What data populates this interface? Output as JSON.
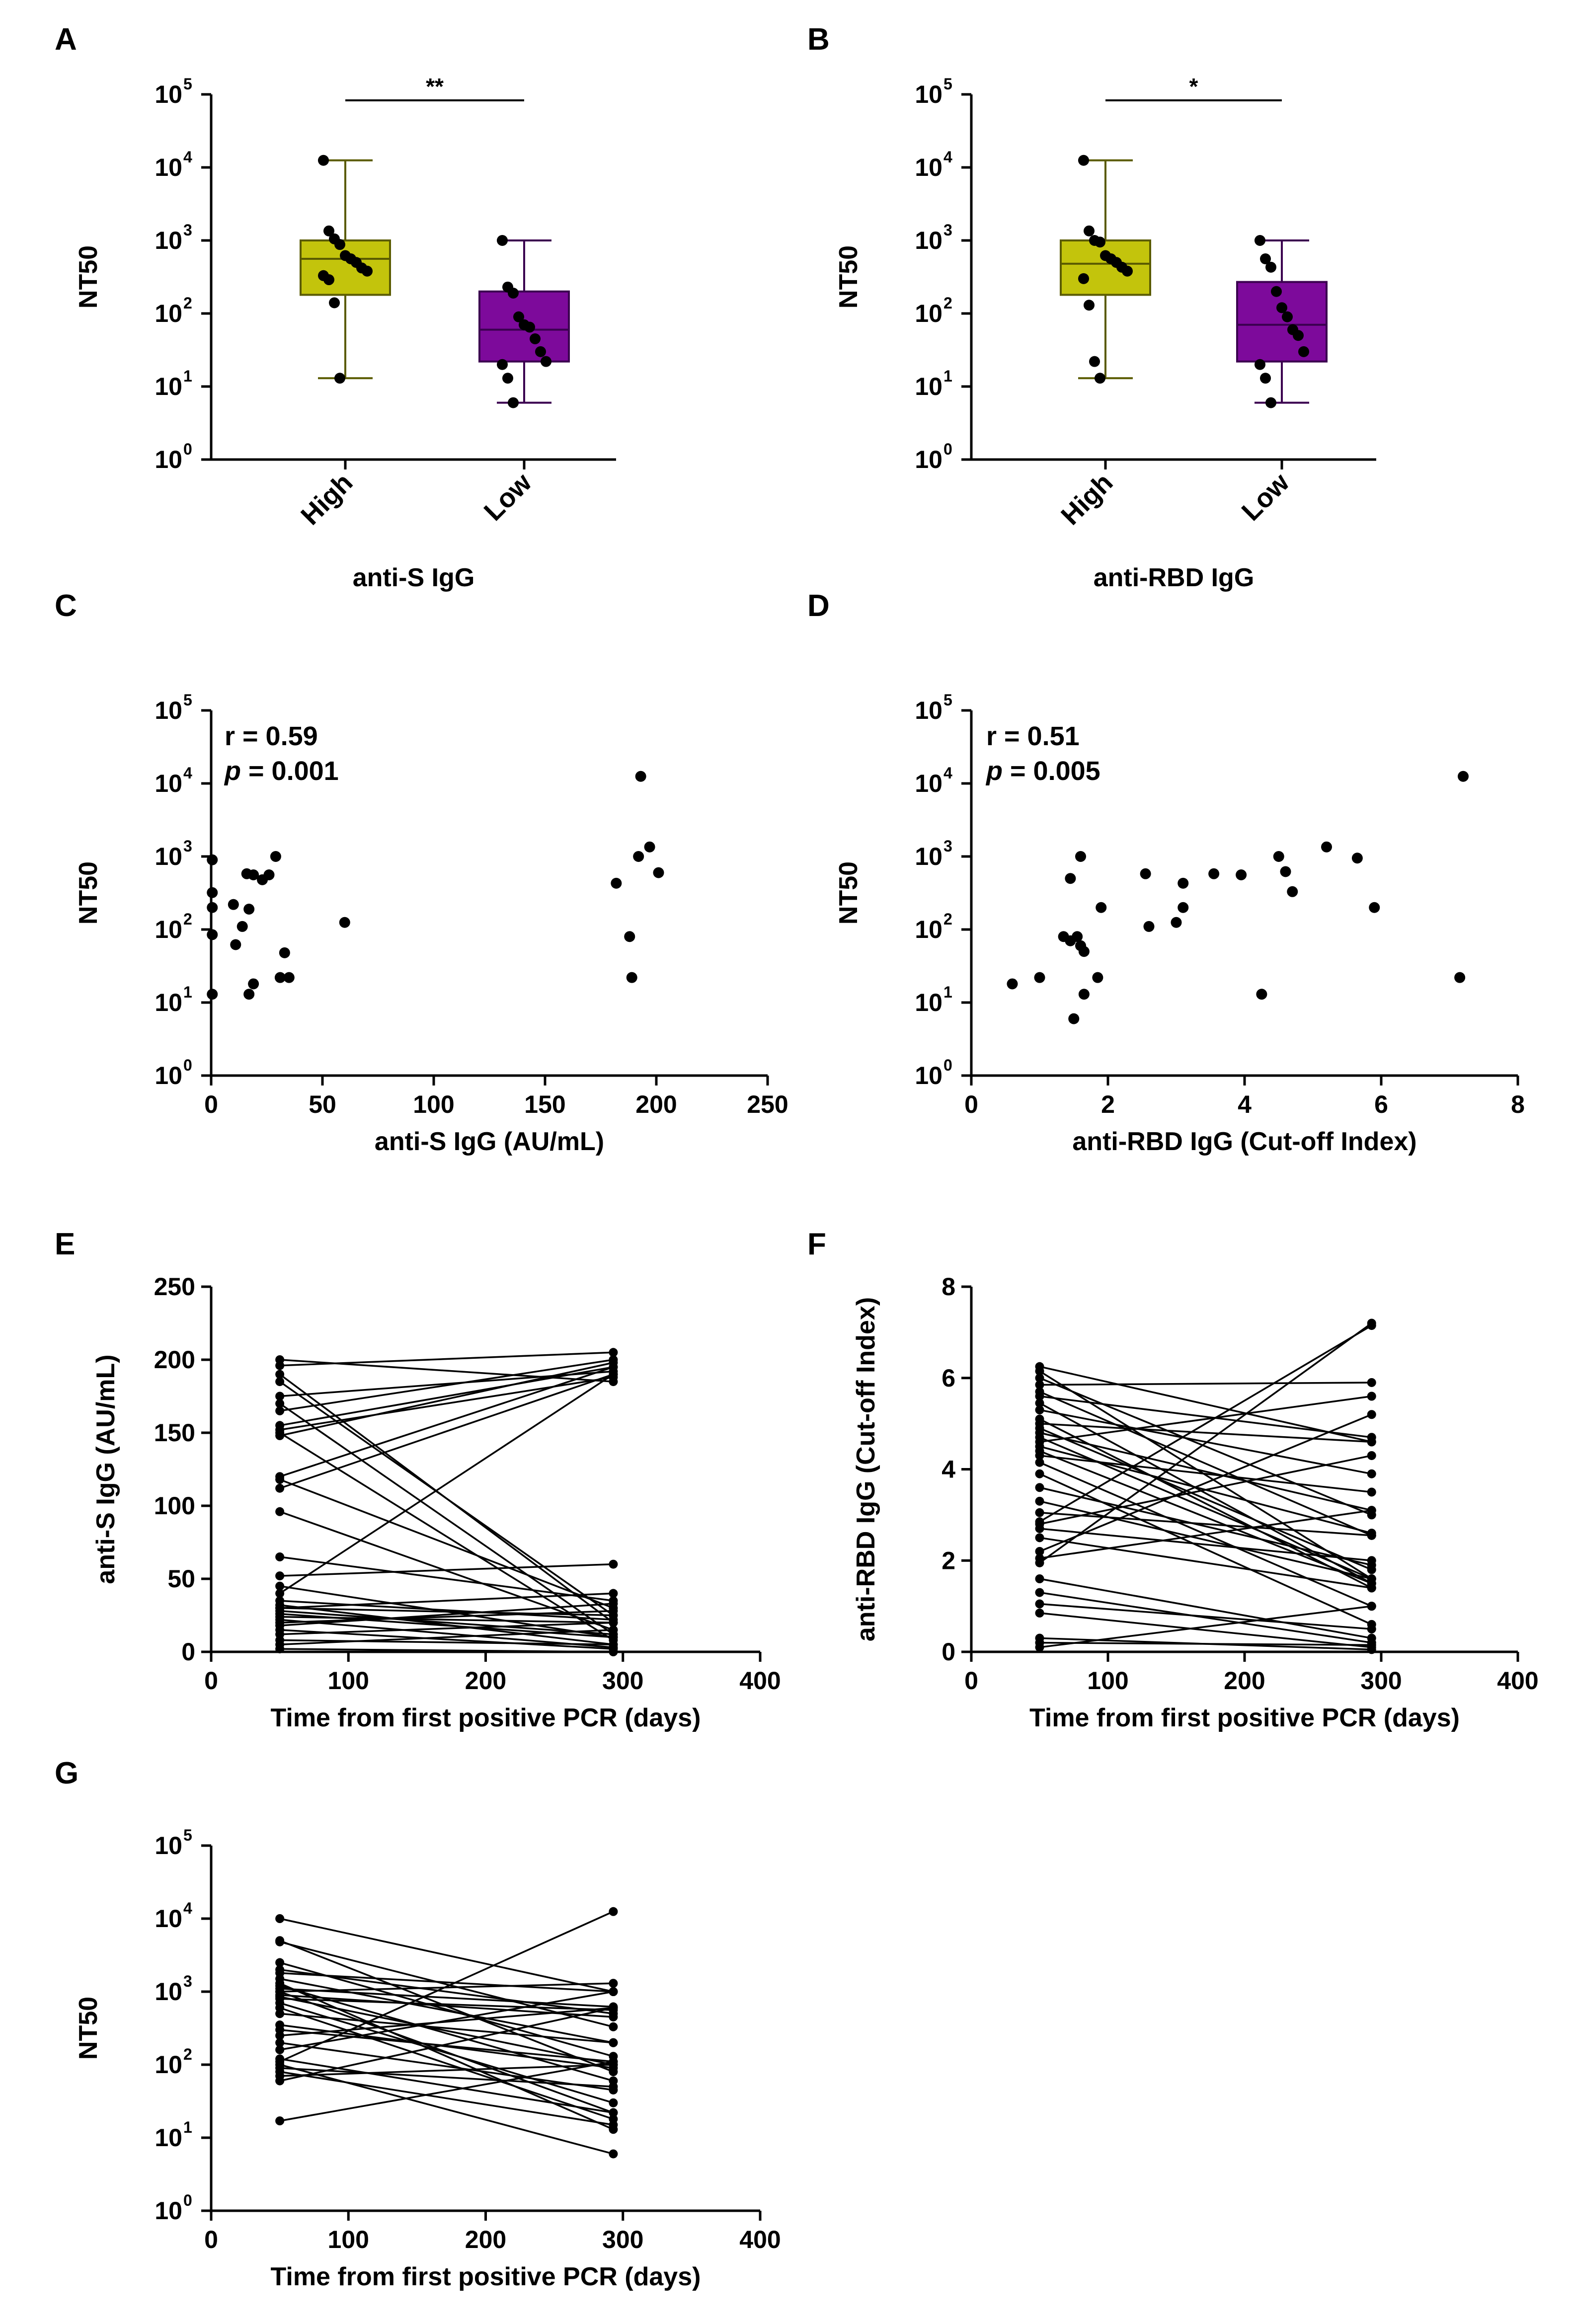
{
  "chart_data": [
    {
      "id": "A",
      "panel_letter": "A",
      "type": "box",
      "ylabel": "NT50",
      "xlabel": "anti-S IgG",
      "yscale": "log",
      "ylim": [
        1,
        100000
      ],
      "ytick_values": [
        1,
        10,
        100,
        1000,
        10000,
        100000
      ],
      "ytick_exponents": [
        "0",
        "1",
        "2",
        "3",
        "4",
        "5"
      ],
      "ytick_base": "10",
      "categories": [
        "High",
        "Low"
      ],
      "boxes": [
        {
          "name": "High",
          "min": 13,
          "q1": 180,
          "median": 560,
          "q3": 1000,
          "max": 12500,
          "color": "#c3c40c",
          "edge_color": "#5a5b00",
          "points": [
            12500,
            1350,
            1050,
            880,
            620,
            560,
            500,
            420,
            380,
            330,
            290,
            140,
            13
          ]
        },
        {
          "name": "Low",
          "min": 6,
          "q1": 22,
          "median": 60,
          "q3": 200,
          "max": 1000,
          "color": "#7d0a9b",
          "edge_color": "#3b0050",
          "points": [
            1000,
            230,
            190,
            90,
            70,
            65,
            45,
            30,
            22,
            20,
            13,
            6
          ]
        }
      ],
      "significance": {
        "label": "**",
        "from": "High",
        "to": "Low",
        "y": 100000
      }
    },
    {
      "id": "B",
      "panel_letter": "B",
      "type": "box",
      "ylabel": "NT50",
      "xlabel": "anti-RBD IgG",
      "yscale": "log",
      "ylim": [
        1,
        100000
      ],
      "ytick_values": [
        1,
        10,
        100,
        1000,
        10000,
        100000
      ],
      "ytick_exponents": [
        "0",
        "1",
        "2",
        "3",
        "4",
        "5"
      ],
      "ytick_base": "10",
      "categories": [
        "High",
        "Low"
      ],
      "boxes": [
        {
          "name": "High",
          "min": 13,
          "q1": 180,
          "median": 480,
          "q3": 1000,
          "max": 12500,
          "color": "#c3c40c",
          "edge_color": "#5a5b00",
          "points": [
            12500,
            1350,
            1000,
            950,
            620,
            560,
            500,
            430,
            380,
            300,
            130,
            22,
            13
          ]
        },
        {
          "name": "Low",
          "min": 6,
          "q1": 22,
          "median": 70,
          "q3": 270,
          "max": 1000,
          "color": "#7d0a9b",
          "edge_color": "#3b0050",
          "points": [
            1000,
            560,
            430,
            200,
            120,
            90,
            60,
            50,
            30,
            20,
            13,
            6
          ]
        }
      ],
      "significance": {
        "label": "*",
        "from": "High",
        "to": "Low",
        "y": 100000
      }
    },
    {
      "id": "C",
      "panel_letter": "C",
      "type": "scatter",
      "ylabel": "NT50",
      "xlabel": "anti-S IgG (AU/mL)",
      "yscale": "log",
      "ylim": [
        1,
        100000
      ],
      "xlim": [
        0,
        250
      ],
      "ytick_values": [
        1,
        10,
        100,
        1000,
        10000,
        100000
      ],
      "ytick_exponents": [
        "0",
        "1",
        "2",
        "3",
        "4",
        "5"
      ],
      "ytick_base": "10",
      "xticks": [
        0,
        50,
        100,
        150,
        200,
        250
      ],
      "annotation": {
        "r_text": "r = 0.59",
        "p_prefix": "p",
        "p_value": " = 0.001"
      },
      "points": [
        [
          0.5,
          900
        ],
        [
          0.5,
          320
        ],
        [
          0.5,
          200
        ],
        [
          0.5,
          85
        ],
        [
          0.5,
          13
        ],
        [
          10,
          220
        ],
        [
          11,
          62
        ],
        [
          14,
          110
        ],
        [
          16,
          580
        ],
        [
          17,
          190
        ],
        [
          17,
          13
        ],
        [
          19,
          560
        ],
        [
          19,
          18
        ],
        [
          23,
          480
        ],
        [
          26,
          560
        ],
        [
          29,
          1000
        ],
        [
          31,
          22
        ],
        [
          33,
          48
        ],
        [
          35,
          22
        ],
        [
          60,
          125
        ],
        [
          182,
          430
        ],
        [
          188,
          80
        ],
        [
          189,
          22
        ],
        [
          192,
          1000
        ],
        [
          193,
          12500
        ],
        [
          197,
          1350
        ],
        [
          201,
          600
        ]
      ]
    },
    {
      "id": "D",
      "panel_letter": "D",
      "type": "scatter",
      "ylabel": "NT50",
      "xlabel": "anti-RBD IgG (Cut-off Index)",
      "yscale": "log",
      "ylim": [
        1,
        100000
      ],
      "xlim": [
        0,
        8
      ],
      "ytick_values": [
        1,
        10,
        100,
        1000,
        10000,
        100000
      ],
      "ytick_exponents": [
        "0",
        "1",
        "2",
        "3",
        "4",
        "5"
      ],
      "ytick_base": "10",
      "xticks": [
        0,
        2,
        4,
        6,
        8
      ],
      "annotation": {
        "r_text": "r = 0.51",
        "p_prefix": "p",
        "p_value": " = 0.005"
      },
      "points": [
        [
          0.6,
          18
        ],
        [
          1.0,
          22
        ],
        [
          1.35,
          80
        ],
        [
          1.45,
          500
        ],
        [
          1.45,
          70
        ],
        [
          1.5,
          6
        ],
        [
          1.55,
          80
        ],
        [
          1.6,
          60
        ],
        [
          1.6,
          1000
        ],
        [
          1.65,
          13
        ],
        [
          1.65,
          50
        ],
        [
          1.85,
          22
        ],
        [
          1.9,
          200
        ],
        [
          2.55,
          580
        ],
        [
          2.6,
          110
        ],
        [
          3.0,
          125
        ],
        [
          3.1,
          430
        ],
        [
          3.1,
          200
        ],
        [
          3.55,
          580
        ],
        [
          3.95,
          560
        ],
        [
          4.25,
          13
        ],
        [
          4.5,
          1000
        ],
        [
          4.6,
          620
        ],
        [
          4.7,
          330
        ],
        [
          5.2,
          1350
        ],
        [
          5.65,
          950
        ],
        [
          5.9,
          200
        ],
        [
          7.15,
          22
        ],
        [
          7.2,
          12500
        ]
      ]
    },
    {
      "id": "E",
      "panel_letter": "E",
      "type": "line",
      "ylabel": "anti-S IgG (AU/mL)",
      "xlabel": "Time from first positive PCR (days)",
      "yscale": "linear",
      "ylim": [
        0,
        250
      ],
      "xlim": [
        0,
        400
      ],
      "yticks": [
        0,
        50,
        100,
        150,
        200,
        250
      ],
      "xticks": [
        0,
        100,
        200,
        300,
        400
      ],
      "x": [
        50,
        293
      ],
      "pairs": [
        [
          200,
          185
        ],
        [
          196,
          205
        ],
        [
          190,
          20
        ],
        [
          185,
          25
        ],
        [
          175,
          192
        ],
        [
          170,
          12
        ],
        [
          165,
          200
        ],
        [
          155,
          195
        ],
        [
          152,
          188
        ],
        [
          150,
          8
        ],
        [
          148,
          198
        ],
        [
          120,
          195
        ],
        [
          118,
          30
        ],
        [
          112,
          190
        ],
        [
          96,
          15
        ],
        [
          65,
          35
        ],
        [
          52,
          60
        ],
        [
          45,
          10
        ],
        [
          40,
          190
        ],
        [
          35,
          22
        ],
        [
          32,
          5
        ],
        [
          30,
          40
        ],
        [
          28,
          12
        ],
        [
          26,
          10
        ],
        [
          22,
          3
        ],
        [
          20,
          28
        ],
        [
          15,
          2
        ],
        [
          12,
          20
        ],
        [
          8,
          5
        ],
        [
          2,
          0
        ],
        [
          5,
          15
        ],
        [
          18,
          33
        ],
        [
          24,
          20
        ],
        [
          30,
          25
        ]
      ]
    },
    {
      "id": "F",
      "panel_letter": "F",
      "type": "line",
      "ylabel": "anti-RBD IgG (Cut-off Index)",
      "xlabel": "Time from first positive PCR (days)",
      "yscale": "linear",
      "ylim": [
        0,
        8
      ],
      "xlim": [
        0,
        400
      ],
      "yticks": [
        0,
        2,
        4,
        6,
        8
      ],
      "xticks": [
        0,
        100,
        200,
        300,
        400
      ],
      "x": [
        50,
        293
      ],
      "pairs": [
        [
          6.25,
          4.6
        ],
        [
          6.15,
          1.6
        ],
        [
          6.0,
          3.0
        ],
        [
          5.85,
          5.9
        ],
        [
          5.7,
          2.55
        ],
        [
          5.6,
          4.7
        ],
        [
          5.45,
          1.5
        ],
        [
          5.3,
          3.9
        ],
        [
          5.1,
          1.4
        ],
        [
          5.0,
          4.6
        ],
        [
          4.9,
          1.8
        ],
        [
          4.8,
          3.1
        ],
        [
          4.7,
          1.6
        ],
        [
          4.6,
          5.6
        ],
        [
          4.5,
          2.6
        ],
        [
          4.4,
          1.5
        ],
        [
          4.3,
          3.5
        ],
        [
          4.15,
          1.0
        ],
        [
          3.9,
          0.6
        ],
        [
          3.6,
          1.9
        ],
        [
          3.3,
          1.6
        ],
        [
          3.05,
          2.55
        ],
        [
          2.85,
          7.15
        ],
        [
          2.8,
          4.3
        ],
        [
          2.7,
          2.0
        ],
        [
          2.5,
          1.4
        ],
        [
          2.2,
          5.2
        ],
        [
          2.05,
          3.1
        ],
        [
          1.95,
          7.2
        ],
        [
          1.6,
          0.3
        ],
        [
          1.3,
          0.2
        ],
        [
          1.05,
          0.5
        ],
        [
          0.85,
          0.1
        ],
        [
          0.3,
          0.05
        ],
        [
          0.2,
          0.15
        ],
        [
          0.1,
          1.0
        ]
      ]
    },
    {
      "id": "G",
      "panel_letter": "G",
      "type": "line",
      "ylabel": "NT50",
      "xlabel": "Time from first positive PCR (days)",
      "yscale": "log",
      "ylim": [
        1,
        100000
      ],
      "xlim": [
        0,
        400
      ],
      "ytick_values": [
        1,
        10,
        100,
        1000,
        10000,
        100000
      ],
      "ytick_exponents": [
        "0",
        "1",
        "2",
        "3",
        "4",
        "5"
      ],
      "ytick_base": "10",
      "xticks": [
        0,
        100,
        200,
        300,
        400
      ],
      "x": [
        50,
        293
      ],
      "pairs": [
        [
          10000,
          1000
        ],
        [
          5000,
          80
        ],
        [
          4800,
          330
        ],
        [
          2500,
          130
        ],
        [
          2000,
          500
        ],
        [
          1800,
          1000
        ],
        [
          1500,
          200
        ],
        [
          1300,
          13
        ],
        [
          1200,
          60
        ],
        [
          1100,
          620
        ],
        [
          1000,
          1300
        ],
        [
          1000,
          22
        ],
        [
          900,
          450
        ],
        [
          850,
          100
        ],
        [
          800,
          560
        ],
        [
          700,
          30
        ],
        [
          600,
          18
        ],
        [
          500,
          200
        ],
        [
          350,
          90
        ],
        [
          300,
          110
        ],
        [
          250,
          600
        ],
        [
          200,
          45
        ],
        [
          160,
          1000
        ],
        [
          120,
          22
        ],
        [
          110,
          12500
        ],
        [
          100,
          6
        ],
        [
          90,
          50
        ],
        [
          80,
          15
        ],
        [
          70,
          100
        ],
        [
          60,
          600
        ],
        [
          17,
          110
        ]
      ]
    }
  ]
}
